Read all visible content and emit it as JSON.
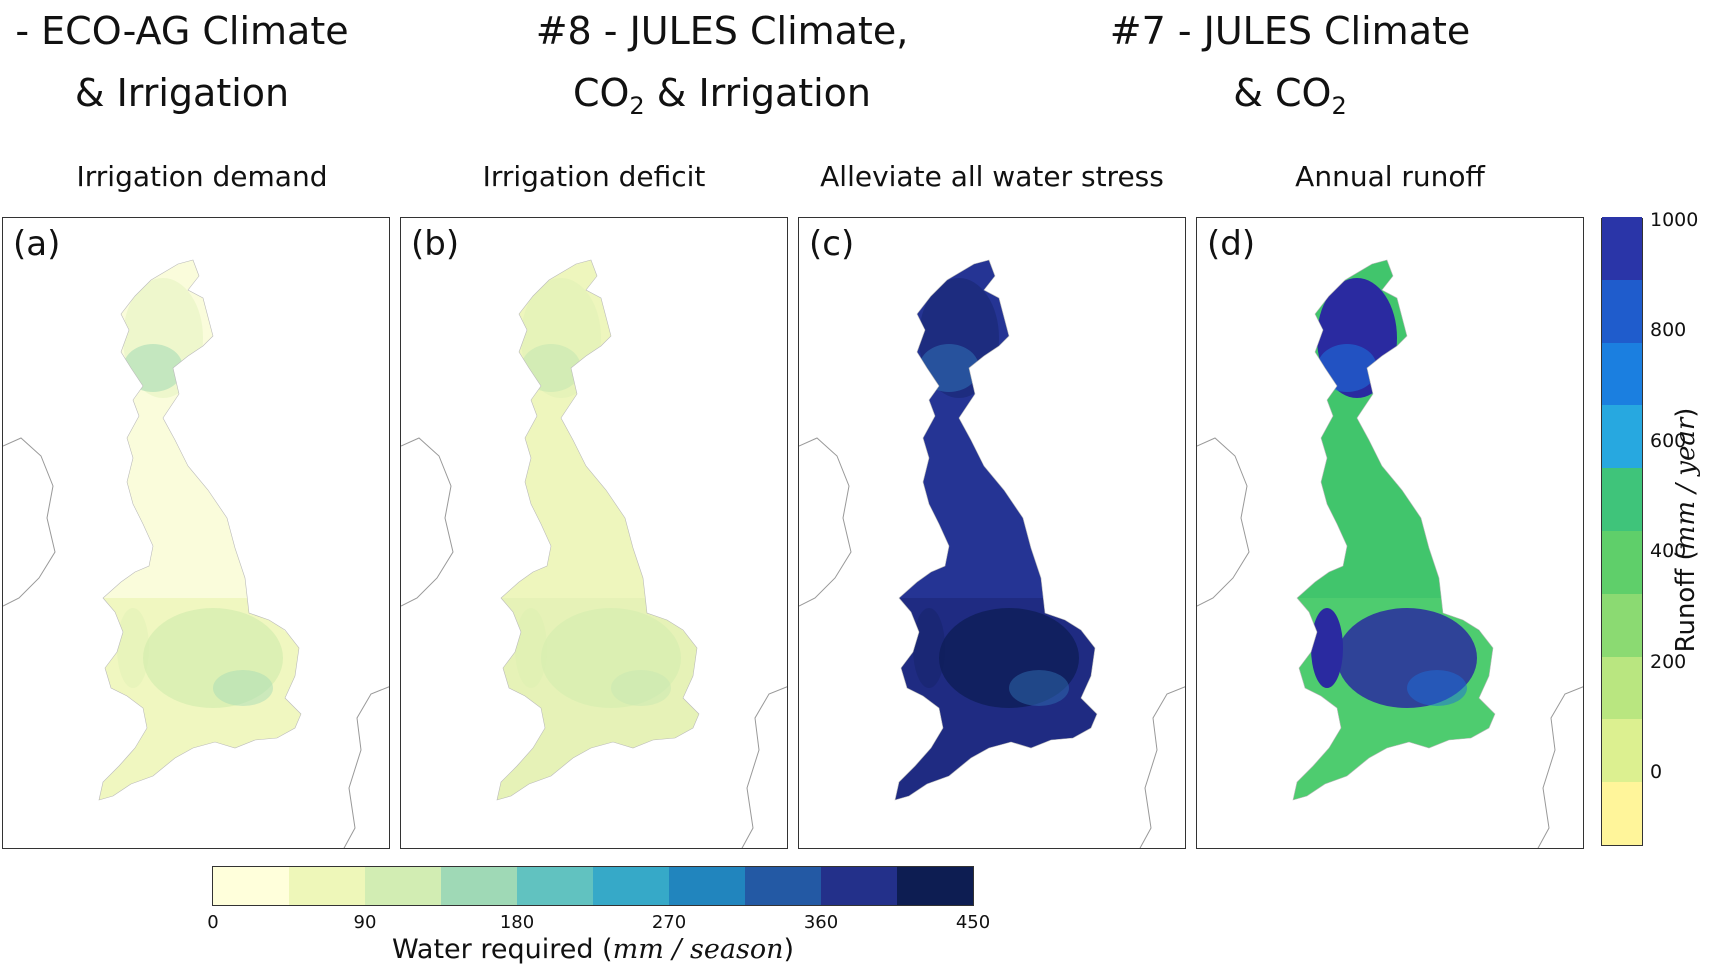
{
  "scenarios": [
    {
      "line1": "- ECO-AG Climate",
      "line2_pre": "& Irrigation",
      "line2_sub": "",
      "line2_post": ""
    },
    {
      "line1": "#8 - JULES Climate,",
      "line2_pre": "CO",
      "line2_sub": "2",
      "line2_post": " & Irrigation"
    },
    {
      "line1": "#7 - JULES Climate",
      "line2_pre": "& CO",
      "line2_sub": "2",
      "line2_post": ""
    }
  ],
  "panels": [
    {
      "label": "(a)",
      "title": "Irrigation demand",
      "colors": [
        "#fafcdb",
        "#eef6bd",
        "#d8efb1",
        "#a8dcb5"
      ],
      "fill_level": 0.18
    },
    {
      "label": "(b)",
      "title": "Irrigation deficit",
      "colors": [
        "#eef6bd",
        "#e4f2b6",
        "#d8efb1",
        "#c7e8b2"
      ],
      "fill_level": 0.12
    },
    {
      "label": "(c)",
      "title": "Alleviate all water stress",
      "colors": [
        "#253494",
        "#1f2a80",
        "#0f1f5a",
        "#2f6db0"
      ],
      "fill_level": 0.82
    },
    {
      "label": "(d)",
      "title": "Annual runoff",
      "colors": [
        "#41c56c",
        "#50cc70",
        "#2a2aa0",
        "#1e6ed8"
      ],
      "fill_level": 0.45
    }
  ],
  "runoff_colorbar": {
    "title_pre": "Runoff (",
    "title_unit": "mm / year",
    "title_post": ")",
    "ticks": [
      "1000",
      "800",
      "600",
      "400",
      "200",
      "0"
    ],
    "colors": [
      "#fff59a",
      "#dcf090",
      "#b9e680",
      "#8bda72",
      "#5fcf6a",
      "#3fc47a",
      "#27a8e0",
      "#1b7fe0",
      "#1f5ccc",
      "#2a35a8"
    ]
  },
  "water_colorbar": {
    "title_pre": "Water required (",
    "title_unit": "mm / season",
    "title_post": ")",
    "ticks": [
      "0",
      "90",
      "180",
      "270",
      "360",
      "450"
    ],
    "colors": [
      "#ffffdb",
      "#eef7b9",
      "#d2edb3",
      "#9fd9b6",
      "#61c2c0",
      "#36a9c8",
      "#2185be",
      "#2359a4",
      "#23308a",
      "#0d1d52"
    ]
  }
}
